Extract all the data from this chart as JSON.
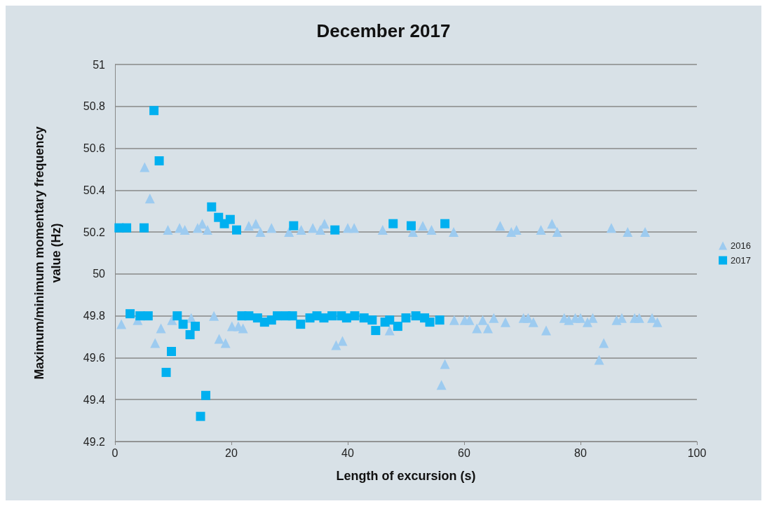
{
  "chart_data": {
    "type": "scatter",
    "title": "December 2017",
    "xlabel": "Length of excursion (s)",
    "ylabel": "Maximum/minimum momentary frequency value (Hz)",
    "xlim": [
      0,
      100
    ],
    "xticks": [
      0,
      20,
      40,
      60,
      80,
      100
    ],
    "ylim": [
      49.2,
      51
    ],
    "yticks": [
      49.2,
      49.4,
      49.6,
      49.8,
      50,
      50.2,
      50.4,
      50.6,
      50.8,
      51
    ],
    "grid": "y",
    "legend": "right",
    "series": [
      {
        "name": "2016",
        "color": "#9dcbf0",
        "marker": "triangle",
        "x": [
          5.1,
          6,
          9.1,
          11.1,
          12,
          14.2,
          15,
          15.9,
          23,
          24.2,
          25,
          26.9,
          29.9,
          32,
          34,
          35.3,
          36,
          40,
          41.1,
          46,
          51.2,
          52.9,
          54.4,
          58.2,
          66.2,
          68.1,
          69,
          73.2,
          75.1,
          76,
          85.3,
          88.1,
          91.1,
          1.1,
          3.9,
          7.9,
          6.9,
          9.8,
          13.1,
          17,
          17.9,
          19,
          20.1,
          21.2,
          22,
          38,
          39.1,
          47.2,
          56.1,
          56.7,
          58.3,
          60.1,
          60.9,
          62.2,
          63.2,
          64.1,
          65.1,
          67.1,
          70.2,
          71,
          71.9,
          74.1,
          77.2,
          78,
          79.1,
          80,
          81.2,
          82.1,
          83.2,
          84,
          86.2,
          87.1,
          89.3,
          90.1,
          92.3,
          93.2
        ],
        "values": [
          50.51,
          50.36,
          50.21,
          50.22,
          50.21,
          50.22,
          50.24,
          50.21,
          50.23,
          50.24,
          50.2,
          50.22,
          50.2,
          50.21,
          50.22,
          50.21,
          50.24,
          50.22,
          50.22,
          50.21,
          50.2,
          50.23,
          50.21,
          50.2,
          50.23,
          50.2,
          50.21,
          50.21,
          50.24,
          50.2,
          50.22,
          50.2,
          50.2,
          49.76,
          49.78,
          49.74,
          49.67,
          49.78,
          49.79,
          49.8,
          49.69,
          49.67,
          49.75,
          49.75,
          49.74,
          49.66,
          49.68,
          49.73,
          49.47,
          49.57,
          49.78,
          49.78,
          49.78,
          49.74,
          49.78,
          49.74,
          49.79,
          49.77,
          49.79,
          49.79,
          49.77,
          49.73,
          49.79,
          49.78,
          49.79,
          49.79,
          49.77,
          49.79,
          49.59,
          49.67,
          49.78,
          49.79,
          49.79,
          49.79,
          49.79,
          49.77
        ]
      },
      {
        "name": "2017",
        "color": "#00b0f0",
        "marker": "square",
        "x": [
          0.7,
          2,
          5,
          6.7,
          7.6,
          16.6,
          17.8,
          18.8,
          19.8,
          20.9,
          30.7,
          37.8,
          47.8,
          50.9,
          56.7,
          2.6,
          4.3,
          5.7,
          10.7,
          11.7,
          12.9,
          13.8,
          9.7,
          8.8,
          15.6,
          14.7,
          21.8,
          23,
          24.5,
          25.7,
          26.9,
          27.9,
          29.4,
          30.5,
          31.9,
          33.5,
          34.7,
          35.9,
          37.3,
          38.9,
          39.8,
          41.2,
          42.8,
          44.2,
          44.8,
          46.4,
          47.2,
          48.6,
          50,
          51.7,
          53.2,
          54.1,
          55.8
        ],
        "values": [
          50.22,
          50.22,
          50.22,
          50.78,
          50.54,
          50.32,
          50.27,
          50.24,
          50.26,
          50.21,
          50.23,
          50.21,
          50.24,
          50.23,
          50.24,
          49.81,
          49.8,
          49.8,
          49.8,
          49.76,
          49.71,
          49.75,
          49.63,
          49.53,
          49.42,
          49.32,
          49.8,
          49.8,
          49.79,
          49.77,
          49.78,
          49.8,
          49.8,
          49.8,
          49.76,
          49.79,
          49.8,
          49.79,
          49.8,
          49.8,
          49.79,
          49.8,
          49.79,
          49.78,
          49.73,
          49.77,
          49.78,
          49.75,
          49.79,
          49.8,
          49.79,
          49.77,
          49.78
        ]
      }
    ]
  }
}
